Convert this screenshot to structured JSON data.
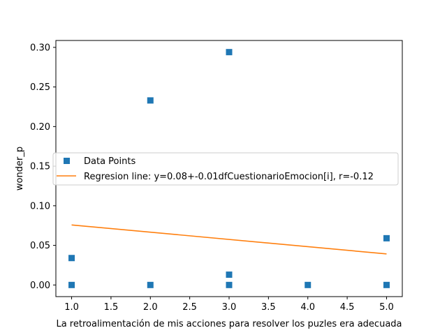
{
  "chart_data": {
    "type": "scatter",
    "title": "",
    "xlabel": "La retroalimentación de mis acciones para resolver los puzles era adecuada",
    "ylabel": "wonder_p",
    "xlim": [
      0.8,
      5.2
    ],
    "ylim": [
      -0.0147,
      0.3087
    ],
    "x_ticks": [
      1.0,
      1.5,
      2.0,
      2.5,
      3.0,
      3.5,
      4.0,
      4.5,
      5.0
    ],
    "x_tick_labels": [
      "1.0",
      "1.5",
      "2.0",
      "2.5",
      "3.0",
      "3.5",
      "4.0",
      "4.5",
      "5.0"
    ],
    "y_ticks": [
      0.0,
      0.05,
      0.1,
      0.15,
      0.2,
      0.25,
      0.3
    ],
    "y_tick_labels": [
      "0.00",
      "0.05",
      "0.10",
      "0.15",
      "0.20",
      "0.25",
      "0.30"
    ],
    "grid": false,
    "legend_position": "center-left",
    "series": [
      {
        "name": "Data Points",
        "kind": "scatter",
        "marker": "square",
        "color": "#1f77b4",
        "points": [
          {
            "x": 1,
            "y": 0.034
          },
          {
            "x": 1,
            "y": 0.0
          },
          {
            "x": 2,
            "y": 0.233
          },
          {
            "x": 2,
            "y": 0.0
          },
          {
            "x": 3,
            "y": 0.294
          },
          {
            "x": 3,
            "y": 0.013
          },
          {
            "x": 3,
            "y": 0.0
          },
          {
            "x": 4,
            "y": 0.0
          },
          {
            "x": 5,
            "y": 0.059
          },
          {
            "x": 5,
            "y": 0.0
          }
        ]
      },
      {
        "name": "Regresion line: y=0.08+-0.01dfCuestionarioEmocion[i], r=-0.12",
        "kind": "line",
        "color": "#ff7f0e",
        "points": [
          {
            "x": 1,
            "y": 0.0758
          },
          {
            "x": 5,
            "y": 0.0392
          }
        ]
      }
    ]
  }
}
